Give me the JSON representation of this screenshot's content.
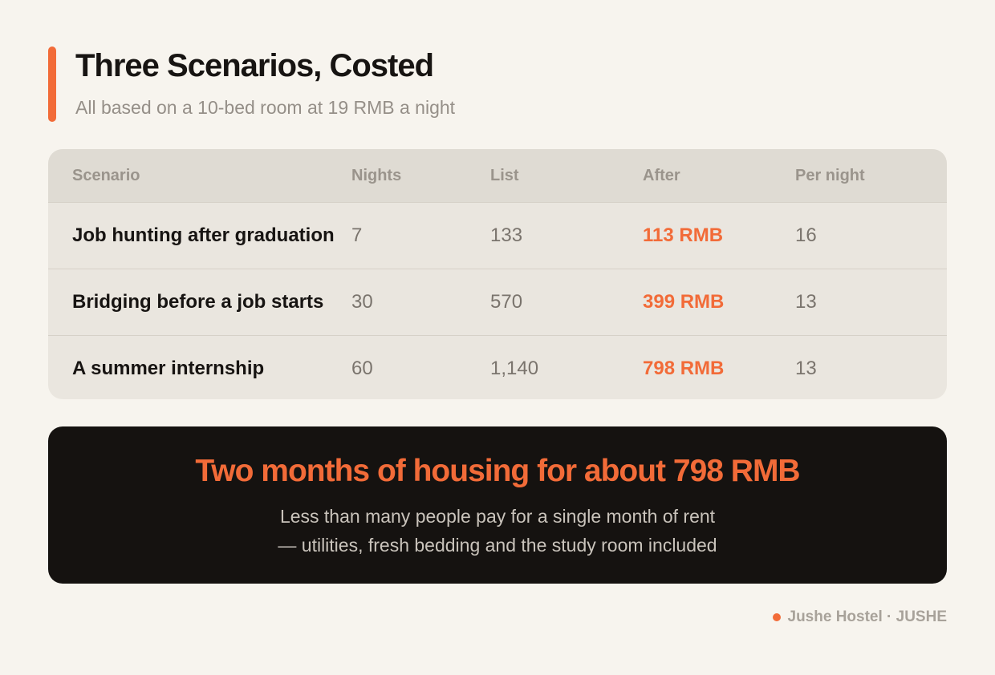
{
  "colors": {
    "accent": "#f26b38",
    "background": "#f7f4ee",
    "dark_panel": "#151210"
  },
  "header": {
    "title": "Three Scenarios, Costed",
    "subtitle": "All based on a 10-bed room at 19 RMB a night"
  },
  "table": {
    "columns": [
      "Scenario",
      "Nights",
      "List",
      "After",
      "Per night"
    ],
    "rows": [
      {
        "scenario": "Job hunting after graduation",
        "nights": "7",
        "list": "133",
        "after": "113 RMB",
        "per_night": "16"
      },
      {
        "scenario": "Bridging before a job starts",
        "nights": "30",
        "list": "570",
        "after": "399 RMB",
        "per_night": "13"
      },
      {
        "scenario": "A summer internship",
        "nights": "60",
        "list": "1,140",
        "after": "798 RMB",
        "per_night": "13"
      }
    ]
  },
  "highlight": {
    "title": "Two months of housing for about 798 RMB",
    "line1": "Less than many people pay for a single month of rent",
    "line2": "— utilities, fresh bedding and the study room included"
  },
  "footer": {
    "brand": "Jushe Hostel · JUSHE"
  }
}
